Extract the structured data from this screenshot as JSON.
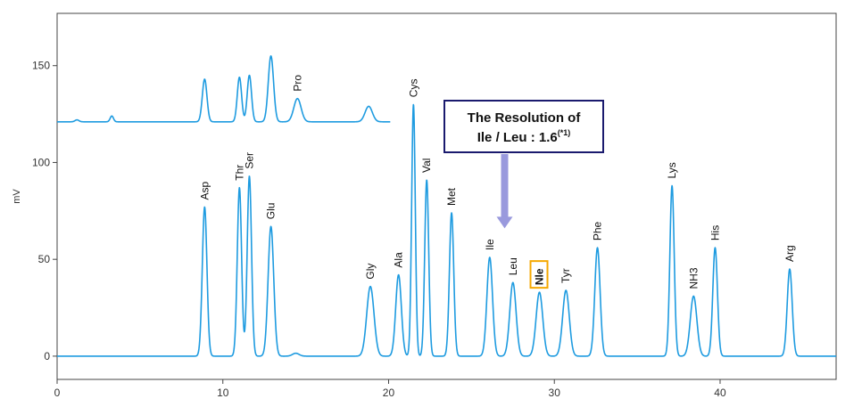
{
  "chart_data": {
    "type": "line",
    "title": "",
    "xlabel": "",
    "ylabel": "mV",
    "xlim": [
      0,
      47
    ],
    "ylim": [
      -12,
      177
    ],
    "x_ticks": [
      0,
      10,
      20,
      30,
      40
    ],
    "y_ticks": [
      0,
      50,
      100,
      150
    ],
    "grid": false,
    "line_color": "#1e9be0",
    "series": [
      {
        "baseline": 0,
        "x_range": [
          0,
          47
        ],
        "peaks": [
          {
            "label": "Asp",
            "x": 8.9,
            "y": 77,
            "width": 0.14
          },
          {
            "label": "Thr",
            "x": 11.0,
            "y": 87,
            "width": 0.13
          },
          {
            "label": "Ser",
            "x": 11.6,
            "y": 93,
            "width": 0.13
          },
          {
            "label": "Glu",
            "x": 12.9,
            "y": 67,
            "width": 0.17
          },
          {
            "label": "",
            "x": 14.4,
            "y": 1.5,
            "width": 0.2
          },
          {
            "label": "Gly",
            "x": 18.9,
            "y": 36,
            "width": 0.22
          },
          {
            "label": "Ala",
            "x": 20.6,
            "y": 42,
            "width": 0.17
          },
          {
            "label": "Cys",
            "x": 21.5,
            "y": 130,
            "width": 0.11
          },
          {
            "label": "Val",
            "x": 22.3,
            "y": 91,
            "width": 0.12
          },
          {
            "label": "Met",
            "x": 23.8,
            "y": 74,
            "width": 0.13
          },
          {
            "label": "Ile",
            "x": 26.1,
            "y": 51,
            "width": 0.17
          },
          {
            "label": "Leu",
            "x": 27.5,
            "y": 38,
            "width": 0.19
          },
          {
            "label": "Nle",
            "x": 29.1,
            "y": 33,
            "width": 0.2,
            "highlight": true
          },
          {
            "label": "Tyr",
            "x": 30.7,
            "y": 34,
            "width": 0.2
          },
          {
            "label": "Phe",
            "x": 32.6,
            "y": 56,
            "width": 0.16
          },
          {
            "label": "Lys",
            "x": 37.1,
            "y": 88,
            "width": 0.13
          },
          {
            "label": "NH3",
            "x": 38.4,
            "y": 31,
            "width": 0.2
          },
          {
            "label": "His",
            "x": 39.7,
            "y": 56,
            "width": 0.14
          },
          {
            "label": "Arg",
            "x": 44.2,
            "y": 45,
            "width": 0.15
          }
        ]
      },
      {
        "baseline": 121,
        "x_range": [
          0,
          20.1
        ],
        "peaks": [
          {
            "label": "",
            "x": 1.2,
            "y": 122,
            "width": 0.12
          },
          {
            "label": "",
            "x": 3.3,
            "y": 124,
            "width": 0.1
          },
          {
            "label": "",
            "x": 8.9,
            "y": 143,
            "width": 0.14
          },
          {
            "label": "",
            "x": 11.0,
            "y": 144,
            "width": 0.13
          },
          {
            "label": "",
            "x": 11.6,
            "y": 145,
            "width": 0.13
          },
          {
            "label": "",
            "x": 12.9,
            "y": 155,
            "width": 0.16
          },
          {
            "label": "Pro",
            "x": 14.5,
            "y": 133,
            "width": 0.22
          },
          {
            "label": "",
            "x": 18.8,
            "y": 129,
            "width": 0.22
          }
        ]
      }
    ],
    "annotation": {
      "line1": "The Resolution of",
      "line2": "Ile / Leu : 1.6",
      "sup": "(*1)",
      "arrow_x": 27.0,
      "arrow_to_y": 66,
      "box_border_color": "#1a1a6e",
      "arrow_color": "#9999dd"
    },
    "highlight_box_color": "#f5a800"
  }
}
